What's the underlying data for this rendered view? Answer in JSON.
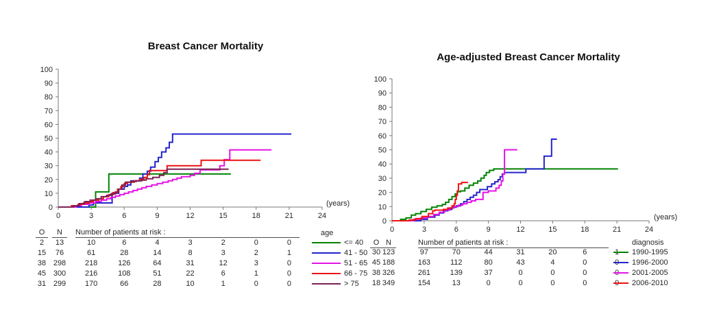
{
  "page": {
    "background": "#ffffff"
  },
  "chart_data": [
    {
      "type": "line",
      "subtype": "step-cumulative-incidence",
      "title": "Breast Cancer Mortality",
      "xlabel": "(years)",
      "ylabel": "",
      "xlim": [
        0,
        24
      ],
      "ylim": [
        0,
        100
      ],
      "xticks": [
        0,
        3,
        6,
        9,
        12,
        15,
        18,
        21,
        24
      ],
      "yticks": [
        0,
        10,
        20,
        30,
        40,
        50,
        60,
        70,
        80,
        90,
        100
      ],
      "grid": false,
      "legend_position": "right-of-risk-table",
      "legend_title": "age",
      "series": [
        {
          "name": "<= 40",
          "color": "#008200",
          "steps": [
            [
              0,
              0
            ],
            [
              3.4,
              11
            ],
            [
              4.6,
              24
            ],
            [
              15.7,
              24
            ]
          ]
        },
        {
          "name": "41 - 50",
          "color": "#2323cc",
          "steps": [
            [
              0,
              0
            ],
            [
              2.8,
              1.5
            ],
            [
              3.2,
              3
            ],
            [
              4.9,
              10
            ],
            [
              5.5,
              13
            ],
            [
              6.0,
              15
            ],
            [
              6.3,
              16
            ],
            [
              6.6,
              19
            ],
            [
              7.4,
              21
            ],
            [
              7.7,
              24
            ],
            [
              8.1,
              26
            ],
            [
              8.4,
              29
            ],
            [
              8.8,
              33
            ],
            [
              9.1,
              36
            ],
            [
              9.4,
              40
            ],
            [
              9.8,
              43
            ],
            [
              10.1,
              47
            ],
            [
              10.4,
              53
            ],
            [
              21.2,
              53
            ]
          ]
        },
        {
          "name": "51 - 65",
          "color": "#e512e5",
          "steps": [
            [
              0,
              0
            ],
            [
              1.6,
              1
            ],
            [
              2.1,
              2
            ],
            [
              2.8,
              3
            ],
            [
              3.4,
              4
            ],
            [
              3.9,
              5
            ],
            [
              4.4,
              6
            ],
            [
              4.8,
              7
            ],
            [
              5.2,
              8
            ],
            [
              5.6,
              9
            ],
            [
              6.0,
              10
            ],
            [
              6.4,
              11
            ],
            [
              6.8,
              12
            ],
            [
              7.2,
              13
            ],
            [
              7.6,
              14
            ],
            [
              8.0,
              15
            ],
            [
              8.5,
              16
            ],
            [
              9.0,
              17
            ],
            [
              9.5,
              18
            ],
            [
              10.0,
              19
            ],
            [
              10.4,
              20
            ],
            [
              10.8,
              21
            ],
            [
              11.2,
              22
            ],
            [
              12.0,
              23
            ],
            [
              12.4,
              24.5
            ],
            [
              12.9,
              27
            ],
            [
              14.7,
              30
            ],
            [
              15.1,
              34.5
            ],
            [
              15.6,
              41.5
            ],
            [
              19.4,
              41.5
            ]
          ]
        },
        {
          "name": "66 - 75",
          "color": "#ee1111",
          "steps": [
            [
              0,
              0
            ],
            [
              1.2,
              1
            ],
            [
              1.8,
              2
            ],
            [
              2.3,
              3
            ],
            [
              2.8,
              4
            ],
            [
              3.2,
              5
            ],
            [
              3.7,
              6
            ],
            [
              4.1,
              7.5
            ],
            [
              4.6,
              9
            ],
            [
              5.0,
              10.5
            ],
            [
              5.4,
              13
            ],
            [
              5.7,
              15
            ],
            [
              6.0,
              17
            ],
            [
              6.3,
              18
            ],
            [
              6.9,
              19
            ],
            [
              7.4,
              20
            ],
            [
              7.8,
              21.5
            ],
            [
              8.1,
              23.5
            ],
            [
              8.3,
              26.5
            ],
            [
              9.9,
              30
            ],
            [
              13.0,
              34
            ],
            [
              18.4,
              34
            ]
          ]
        },
        {
          "name": "> 75",
          "color": "#7c2153",
          "steps": [
            [
              0,
              0
            ],
            [
              1.4,
              1
            ],
            [
              1.9,
              2.5
            ],
            [
              2.4,
              4
            ],
            [
              2.9,
              5
            ],
            [
              3.4,
              6
            ],
            [
              3.9,
              7.5
            ],
            [
              4.4,
              8.5
            ],
            [
              4.8,
              9.5
            ],
            [
              5.2,
              11
            ],
            [
              5.5,
              13
            ],
            [
              5.8,
              16
            ],
            [
              6.1,
              18
            ],
            [
              6.6,
              18.5
            ],
            [
              7.1,
              19
            ],
            [
              7.6,
              19.5
            ],
            [
              8.0,
              20.5
            ],
            [
              8.6,
              21.5
            ],
            [
              9.2,
              23
            ],
            [
              9.6,
              25
            ],
            [
              9.9,
              27.5
            ],
            [
              15.5,
              27.5
            ]
          ]
        }
      ],
      "risk_table": {
        "col_observed": "O",
        "col_total": "N",
        "caption": "Number of patients at risk :",
        "risk_years": [
          3,
          6,
          9,
          12,
          15,
          18,
          21
        ],
        "rows": [
          {
            "O": "2",
            "N": "13",
            "at_risk": [
              "10",
              "6",
              "4",
              "3",
              "2",
              "0",
              "0"
            ],
            "label": "<= 40",
            "color": "#008200"
          },
          {
            "O": "15",
            "N": "76",
            "at_risk": [
              "61",
              "28",
              "14",
              "8",
              "3",
              "2",
              "1"
            ],
            "label": "41 - 50",
            "color": "#2323cc"
          },
          {
            "O": "38",
            "N": "298",
            "at_risk": [
              "218",
              "126",
              "64",
              "31",
              "12",
              "3",
              "0"
            ],
            "label": "51 - 65",
            "color": "#e512e5"
          },
          {
            "O": "45",
            "N": "300",
            "at_risk": [
              "216",
              "108",
              "51",
              "22",
              "6",
              "1",
              "0"
            ],
            "label": "66 - 75",
            "color": "#ee1111"
          },
          {
            "O": "31",
            "N": "299",
            "at_risk": [
              "170",
              "66",
              "28",
              "10",
              "1",
              "0",
              "0"
            ],
            "label": "> 75",
            "color": "#7c2153"
          }
        ]
      }
    },
    {
      "type": "line",
      "subtype": "step-cumulative-incidence",
      "title": "Age-adjusted Breast Cancer Mortality",
      "xlabel": "(years)",
      "ylabel": "",
      "xlim": [
        0,
        24
      ],
      "ylim": [
        0,
        100
      ],
      "xticks": [
        0,
        3,
        6,
        9,
        12,
        15,
        18,
        21,
        24
      ],
      "yticks": [
        0,
        10,
        20,
        30,
        40,
        50,
        60,
        70,
        80,
        90,
        100
      ],
      "grid": false,
      "legend_position": "right-of-risk-table",
      "legend_title": "diagnosis",
      "series": [
        {
          "name": "1990-1995",
          "color": "#008200",
          "steps": [
            [
              0,
              0
            ],
            [
              0.8,
              1
            ],
            [
              1.3,
              2
            ],
            [
              1.8,
              4
            ],
            [
              2.2,
              5
            ],
            [
              2.7,
              6.5
            ],
            [
              3.2,
              8
            ],
            [
              3.7,
              9.5
            ],
            [
              4.2,
              10.5
            ],
            [
              4.7,
              11.5
            ],
            [
              5.0,
              13
            ],
            [
              5.3,
              15
            ],
            [
              5.6,
              17
            ],
            [
              5.9,
              19
            ],
            [
              6.1,
              20.5
            ],
            [
              6.4,
              21
            ],
            [
              6.8,
              23
            ],
            [
              7.2,
              25
            ],
            [
              7.6,
              26.5
            ],
            [
              8.0,
              28
            ],
            [
              8.3,
              30
            ],
            [
              8.6,
              32
            ],
            [
              8.8,
              34
            ],
            [
              9.1,
              35.5
            ],
            [
              9.5,
              36.5
            ],
            [
              21.1,
              36.5
            ]
          ]
        },
        {
          "name": "1996-2000",
          "color": "#2323cc",
          "steps": [
            [
              0,
              0
            ],
            [
              2.7,
              1
            ],
            [
              3.3,
              2.5
            ],
            [
              4.0,
              4
            ],
            [
              4.4,
              5.5
            ],
            [
              4.8,
              7
            ],
            [
              5.2,
              8
            ],
            [
              5.6,
              9.5
            ],
            [
              6.0,
              10.5
            ],
            [
              6.4,
              12
            ],
            [
              6.7,
              13.5
            ],
            [
              7.0,
              15
            ],
            [
              7.3,
              16.5
            ],
            [
              7.6,
              18
            ],
            [
              7.9,
              20
            ],
            [
              8.2,
              22
            ],
            [
              8.9,
              24
            ],
            [
              9.3,
              26
            ],
            [
              9.6,
              27.5
            ],
            [
              9.9,
              29
            ],
            [
              10.1,
              31
            ],
            [
              10.3,
              33
            ],
            [
              10.5,
              34
            ],
            [
              12.5,
              36.5
            ],
            [
              14.2,
              45.5
            ],
            [
              14.9,
              57.5
            ],
            [
              15.4,
              57.5
            ]
          ]
        },
        {
          "name": "2001-2005",
          "color": "#e512e5",
          "steps": [
            [
              0,
              0
            ],
            [
              2.0,
              1
            ],
            [
              2.7,
              2
            ],
            [
              3.3,
              3
            ],
            [
              3.9,
              4.5
            ],
            [
              4.4,
              6
            ],
            [
              4.9,
              7.5
            ],
            [
              5.4,
              9
            ],
            [
              5.8,
              10
            ],
            [
              6.2,
              11
            ],
            [
              6.6,
              12
            ],
            [
              7.0,
              13
            ],
            [
              7.4,
              14
            ],
            [
              7.8,
              15
            ],
            [
              8.5,
              20
            ],
            [
              9.0,
              21
            ],
            [
              9.7,
              23
            ],
            [
              10.0,
              25
            ],
            [
              10.2,
              28
            ],
            [
              10.35,
              33
            ],
            [
              10.5,
              50
            ],
            [
              11.7,
              50
            ]
          ]
        },
        {
          "name": "2006-2010",
          "color": "#ee1111",
          "steps": [
            [
              0,
              0
            ],
            [
              1.6,
              0.5
            ],
            [
              2.2,
              1.5
            ],
            [
              2.8,
              3
            ],
            [
              3.4,
              5
            ],
            [
              3.8,
              7
            ],
            [
              4.0,
              7.5
            ],
            [
              4.8,
              8
            ],
            [
              5.2,
              9
            ],
            [
              5.6,
              10.5
            ],
            [
              5.8,
              12
            ],
            [
              5.9,
              15
            ],
            [
              6.0,
              18
            ],
            [
              6.1,
              21
            ],
            [
              6.2,
              26
            ],
            [
              6.5,
              27
            ],
            [
              7.1,
              27
            ]
          ]
        }
      ],
      "risk_table": {
        "col_observed": "O",
        "col_total": "N",
        "caption": "Number of patients at risk :",
        "risk_years": [
          3,
          6,
          9,
          12,
          15,
          18,
          21
        ],
        "rows": [
          {
            "O": "30",
            "N": "123",
            "at_risk": [
              "97",
              "70",
              "44",
              "31",
              "20",
              "6",
              "1"
            ],
            "label": "1990-1995",
            "color": "#008200"
          },
          {
            "O": "45",
            "N": "188",
            "at_risk": [
              "163",
              "112",
              "80",
              "43",
              "4",
              "0",
              "0"
            ],
            "label": "1996-2000",
            "color": "#2323cc"
          },
          {
            "O": "38",
            "N": "326",
            "at_risk": [
              "261",
              "139",
              "37",
              "0",
              "0",
              "0",
              "0"
            ],
            "label": "2001-2005",
            "color": "#e512e5"
          },
          {
            "O": "18",
            "N": "349",
            "at_risk": [
              "154",
              "13",
              "0",
              "0",
              "0",
              "0",
              "0"
            ],
            "label": "2006-2010",
            "color": "#ee1111"
          }
        ]
      }
    }
  ]
}
